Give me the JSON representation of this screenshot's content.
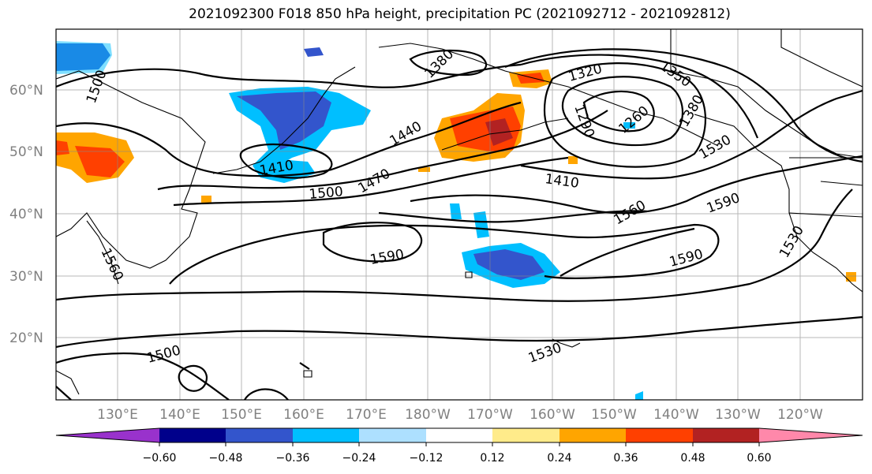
{
  "title": "2021092300 F018 850 hPa height, precipitation PC (2021092712 - 2021092812)",
  "lat_labels": [
    "60°N",
    "50°N",
    "40°N",
    "30°N",
    "20°N"
  ],
  "lon_labels": [
    "130°E",
    "140°E",
    "150°E",
    "160°E",
    "170°E",
    "180°W",
    "170°W",
    "160°W",
    "150°W",
    "140°W",
    "130°W",
    "120°W"
  ],
  "contour_labels": [
    "1500",
    "1380",
    "1320",
    "1350",
    "1290",
    "1260",
    "1380",
    "1440",
    "1410",
    "1470",
    "1500",
    "1410",
    "1530",
    "1560",
    "1590",
    "1590",
    "1590",
    "1560",
    "1530",
    "1500",
    "1530"
  ],
  "colorbar": {
    "ticks": [
      "−0.60",
      "−0.48",
      "−0.36",
      "−0.24",
      "−0.12",
      "0.12",
      "0.24",
      "0.36",
      "0.48",
      "0.60"
    ],
    "colors": [
      "#9932CC",
      "#00008B",
      "#3355CC",
      "#00BFFF",
      "#ADE0FF",
      "#FFFFFF",
      "#FFEB8A",
      "#FFA500",
      "#FF4000",
      "#B22222",
      "#FF88AA"
    ]
  }
}
